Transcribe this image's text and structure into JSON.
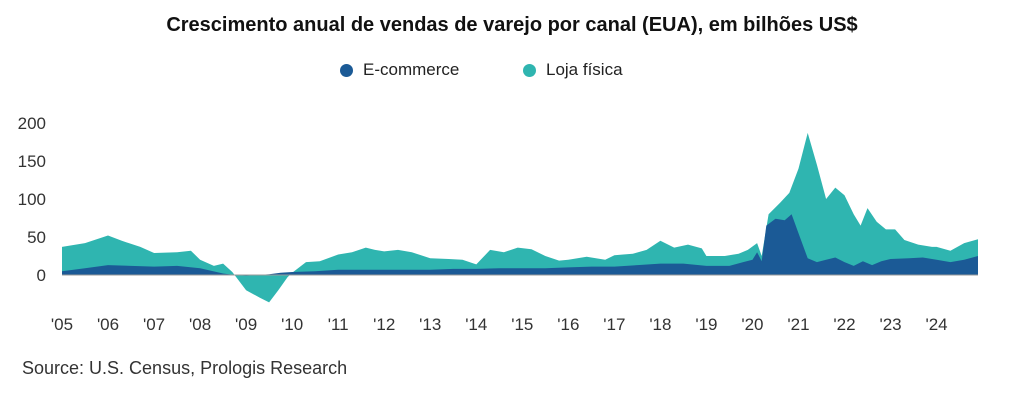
{
  "chart_data": {
    "type": "area",
    "title": "Crescimento anual de vendas de varejo por canal (EUA), em bilhões US$",
    "legend": {
      "placement": "top-center"
    },
    "ylim": [
      -40,
      200
    ],
    "y_ticks": [
      0,
      50,
      100,
      150,
      200
    ],
    "x_ticks": [
      {
        "label": "'05",
        "x": 2005.0
      },
      {
        "label": "'06",
        "x": 2006.0
      },
      {
        "label": "'07",
        "x": 2007.0
      },
      {
        "label": "'08",
        "x": 2008.0
      },
      {
        "label": "'09",
        "x": 2009.0
      },
      {
        "label": "'10",
        "x": 2010.0
      },
      {
        "label": "'11",
        "x": 2011.0
      },
      {
        "label": "'12",
        "x": 2012.0
      },
      {
        "label": "'13",
        "x": 2013.0
      },
      {
        "label": "'14",
        "x": 2014.0
      },
      {
        "label": "'15",
        "x": 2015.0
      },
      {
        "label": "'16",
        "x": 2016.0
      },
      {
        "label": "'17",
        "x": 2017.0
      },
      {
        "label": "'18",
        "x": 2018.0
      },
      {
        "label": "'19",
        "x": 2019.0
      },
      {
        "label": "'20",
        "x": 2020.0
      },
      {
        "label": "'21",
        "x": 2021.0
      },
      {
        "label": "'22",
        "x": 2022.0
      },
      {
        "label": "'23",
        "x": 2023.0
      },
      {
        "label": "'24",
        "x": 2024.0
      }
    ],
    "xlim": [
      2005.0,
      2024.9
    ],
    "series": [
      {
        "name": "E-commerce",
        "color": "#1b5a96",
        "points": [
          [
            2005.0,
            5
          ],
          [
            2005.5,
            9
          ],
          [
            2006.0,
            13
          ],
          [
            2006.5,
            12
          ],
          [
            2007.0,
            11
          ],
          [
            2007.5,
            12
          ],
          [
            2008.0,
            9
          ],
          [
            2008.5,
            2
          ],
          [
            2008.75,
            0
          ],
          [
            2009.0,
            -1
          ],
          [
            2009.5,
            1
          ],
          [
            2009.75,
            3
          ],
          [
            2010.0,
            4
          ],
          [
            2010.5,
            5
          ],
          [
            2011.0,
            7
          ],
          [
            2011.5,
            7
          ],
          [
            2012.0,
            7
          ],
          [
            2012.5,
            7
          ],
          [
            2013.0,
            7
          ],
          [
            2013.5,
            8
          ],
          [
            2014.0,
            8
          ],
          [
            2014.5,
            9
          ],
          [
            2015.0,
            9
          ],
          [
            2015.5,
            9
          ],
          [
            2016.0,
            10
          ],
          [
            2016.5,
            11
          ],
          [
            2017.0,
            11
          ],
          [
            2017.5,
            13
          ],
          [
            2018.0,
            15
          ],
          [
            2018.5,
            15
          ],
          [
            2019.0,
            12
          ],
          [
            2019.5,
            12
          ],
          [
            2019.8,
            17
          ],
          [
            2020.0,
            20
          ],
          [
            2020.1,
            30
          ],
          [
            2020.2,
            18
          ],
          [
            2020.3,
            65
          ],
          [
            2020.5,
            74
          ],
          [
            2020.7,
            72
          ],
          [
            2020.85,
            80
          ],
          [
            2021.0,
            55
          ],
          [
            2021.2,
            22
          ],
          [
            2021.4,
            17
          ],
          [
            2021.6,
            20
          ],
          [
            2021.8,
            23
          ],
          [
            2022.0,
            17
          ],
          [
            2022.2,
            12
          ],
          [
            2022.4,
            18
          ],
          [
            2022.6,
            13
          ],
          [
            2022.8,
            18
          ],
          [
            2023.0,
            21
          ],
          [
            2023.4,
            22
          ],
          [
            2023.7,
            23
          ],
          [
            2024.0,
            20
          ],
          [
            2024.3,
            17
          ],
          [
            2024.6,
            20
          ],
          [
            2024.9,
            25
          ]
        ]
      },
      {
        "name": "Loja física",
        "color": "#2fb5b0",
        "points": [
          [
            2005.0,
            37
          ],
          [
            2005.5,
            42
          ],
          [
            2006.0,
            52
          ],
          [
            2006.3,
            45
          ],
          [
            2006.7,
            37
          ],
          [
            2007.0,
            29
          ],
          [
            2007.5,
            30
          ],
          [
            2007.8,
            32
          ],
          [
            2008.0,
            20
          ],
          [
            2008.3,
            12
          ],
          [
            2008.5,
            15
          ],
          [
            2008.7,
            4
          ],
          [
            2009.0,
            -20
          ],
          [
            2009.3,
            -30
          ],
          [
            2009.5,
            -36
          ],
          [
            2009.7,
            -20
          ],
          [
            2009.9,
            -3
          ],
          [
            2010.0,
            3
          ],
          [
            2010.3,
            17
          ],
          [
            2010.6,
            18
          ],
          [
            2011.0,
            27
          ],
          [
            2011.3,
            30
          ],
          [
            2011.6,
            36
          ],
          [
            2011.8,
            33
          ],
          [
            2012.0,
            31
          ],
          [
            2012.3,
            33
          ],
          [
            2012.6,
            30
          ],
          [
            2013.0,
            22
          ],
          [
            2013.4,
            21
          ],
          [
            2013.7,
            20
          ],
          [
            2014.0,
            14
          ],
          [
            2014.3,
            33
          ],
          [
            2014.6,
            30
          ],
          [
            2014.9,
            36
          ],
          [
            2015.2,
            34
          ],
          [
            2015.5,
            25
          ],
          [
            2015.8,
            19
          ],
          [
            2016.0,
            20
          ],
          [
            2016.4,
            24
          ],
          [
            2016.8,
            20
          ],
          [
            2017.0,
            26
          ],
          [
            2017.4,
            28
          ],
          [
            2017.7,
            33
          ],
          [
            2018.0,
            45
          ],
          [
            2018.3,
            36
          ],
          [
            2018.6,
            40
          ],
          [
            2018.9,
            35
          ],
          [
            2019.0,
            25
          ],
          [
            2019.4,
            25
          ],
          [
            2019.7,
            28
          ],
          [
            2019.9,
            33
          ],
          [
            2020.1,
            42
          ],
          [
            2020.2,
            25
          ],
          [
            2020.35,
            80
          ],
          [
            2020.6,
            95
          ],
          [
            2020.8,
            108
          ],
          [
            2021.0,
            140
          ],
          [
            2021.2,
            187
          ],
          [
            2021.4,
            145
          ],
          [
            2021.6,
            100
          ],
          [
            2021.8,
            115
          ],
          [
            2022.0,
            105
          ],
          [
            2022.2,
            80
          ],
          [
            2022.35,
            65
          ],
          [
            2022.5,
            88
          ],
          [
            2022.7,
            70
          ],
          [
            2022.9,
            60
          ],
          [
            2023.1,
            60
          ],
          [
            2023.3,
            46
          ],
          [
            2023.6,
            40
          ],
          [
            2023.9,
            37
          ],
          [
            2024.0,
            37
          ],
          [
            2024.3,
            32
          ],
          [
            2024.6,
            42
          ],
          [
            2024.9,
            47
          ]
        ]
      }
    ]
  },
  "source": "Source: U.S. Census, Prologis Research"
}
